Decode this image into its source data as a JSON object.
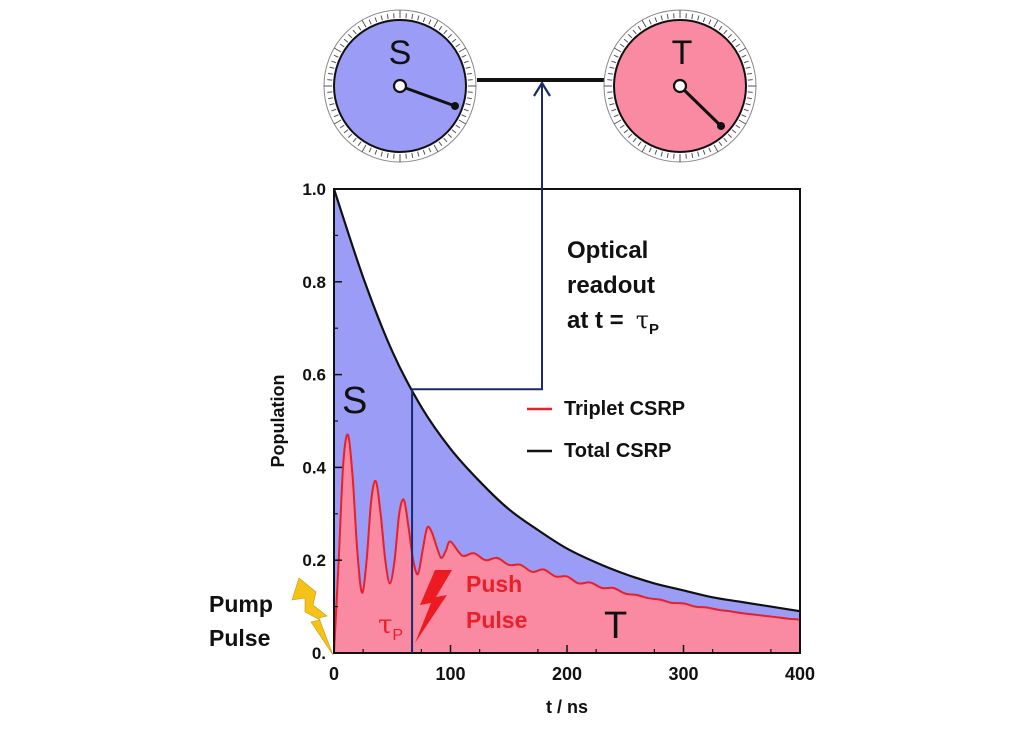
{
  "chart_data": {
    "type": "area",
    "title": "",
    "xlabel": "t / ns",
    "ylabel": "Population",
    "xlim": [
      0,
      400
    ],
    "ylim": [
      0,
      1.0
    ],
    "x_ticks": [
      0,
      100,
      200,
      300,
      400
    ],
    "y_ticks": [
      0.0,
      0.2,
      0.4,
      0.6,
      0.8,
      1.0
    ],
    "x_tick_labels": [
      "0",
      "100",
      "200",
      "300",
      "400"
    ],
    "y_tick_labels": [
      "0.",
      "0.2",
      "0.4",
      "0.6",
      "0.8",
      "1.0"
    ],
    "grid": false,
    "legend_position": "right",
    "series": [
      {
        "name": "Triplet CSRP",
        "color": "#e8202a",
        "fill": "#fa8aa2",
        "x": [
          0,
          4,
          8,
          12,
          16,
          20,
          24,
          28,
          32,
          36,
          40,
          44,
          48,
          52,
          56,
          60,
          64,
          68,
          72,
          76,
          80,
          84,
          88,
          92,
          96,
          100,
          110,
          120,
          130,
          140,
          150,
          160,
          170,
          180,
          190,
          200,
          210,
          220,
          230,
          240,
          250,
          260,
          270,
          280,
          290,
          300,
          310,
          320,
          330,
          340,
          350,
          360,
          370,
          380,
          390,
          400
        ],
        "y": [
          0.0,
          0.2,
          0.41,
          0.47,
          0.38,
          0.22,
          0.13,
          0.2,
          0.33,
          0.37,
          0.3,
          0.2,
          0.15,
          0.2,
          0.3,
          0.33,
          0.27,
          0.2,
          0.17,
          0.22,
          0.27,
          0.26,
          0.23,
          0.205,
          0.22,
          0.24,
          0.21,
          0.215,
          0.2,
          0.205,
          0.19,
          0.19,
          0.175,
          0.18,
          0.165,
          0.165,
          0.15,
          0.152,
          0.14,
          0.14,
          0.128,
          0.125,
          0.118,
          0.115,
          0.108,
          0.107,
          0.1,
          0.098,
          0.093,
          0.09,
          0.086,
          0.083,
          0.08,
          0.077,
          0.074,
          0.072
        ]
      },
      {
        "name": "Total CSRP",
        "color": "#111111",
        "fill": "#9a9cf6",
        "x": [
          0,
          25,
          50,
          75,
          100,
          125,
          150,
          175,
          200,
          225,
          250,
          275,
          300,
          325,
          350,
          375,
          400
        ],
        "y": [
          1.0,
          0.81,
          0.65,
          0.53,
          0.44,
          0.37,
          0.31,
          0.265,
          0.225,
          0.195,
          0.17,
          0.15,
          0.135,
          0.12,
          0.11,
          0.1,
          0.09
        ]
      }
    ],
    "readout_time": 67,
    "annotations": {
      "s_region": "S",
      "t_region": "T",
      "optical_line1": "Optical",
      "optical_line2": "readout",
      "optical_line3": "at t =",
      "tau": "τ",
      "tau_sub": "P",
      "push_line1": "Push",
      "push_line2": "Pulse",
      "pump_line1": "Pump",
      "pump_line2": "Pulse"
    }
  },
  "clocks": {
    "singlet": {
      "label": "S",
      "color": "#9a9cf6"
    },
    "triplet": {
      "label": "T",
      "color": "#fa8aa2"
    }
  },
  "colors": {
    "arrow": "#1a2a6a",
    "push_bolt": "#ee1a22",
    "pump_bolt": "#f5c318",
    "annotation_red": "#e8202a"
  }
}
